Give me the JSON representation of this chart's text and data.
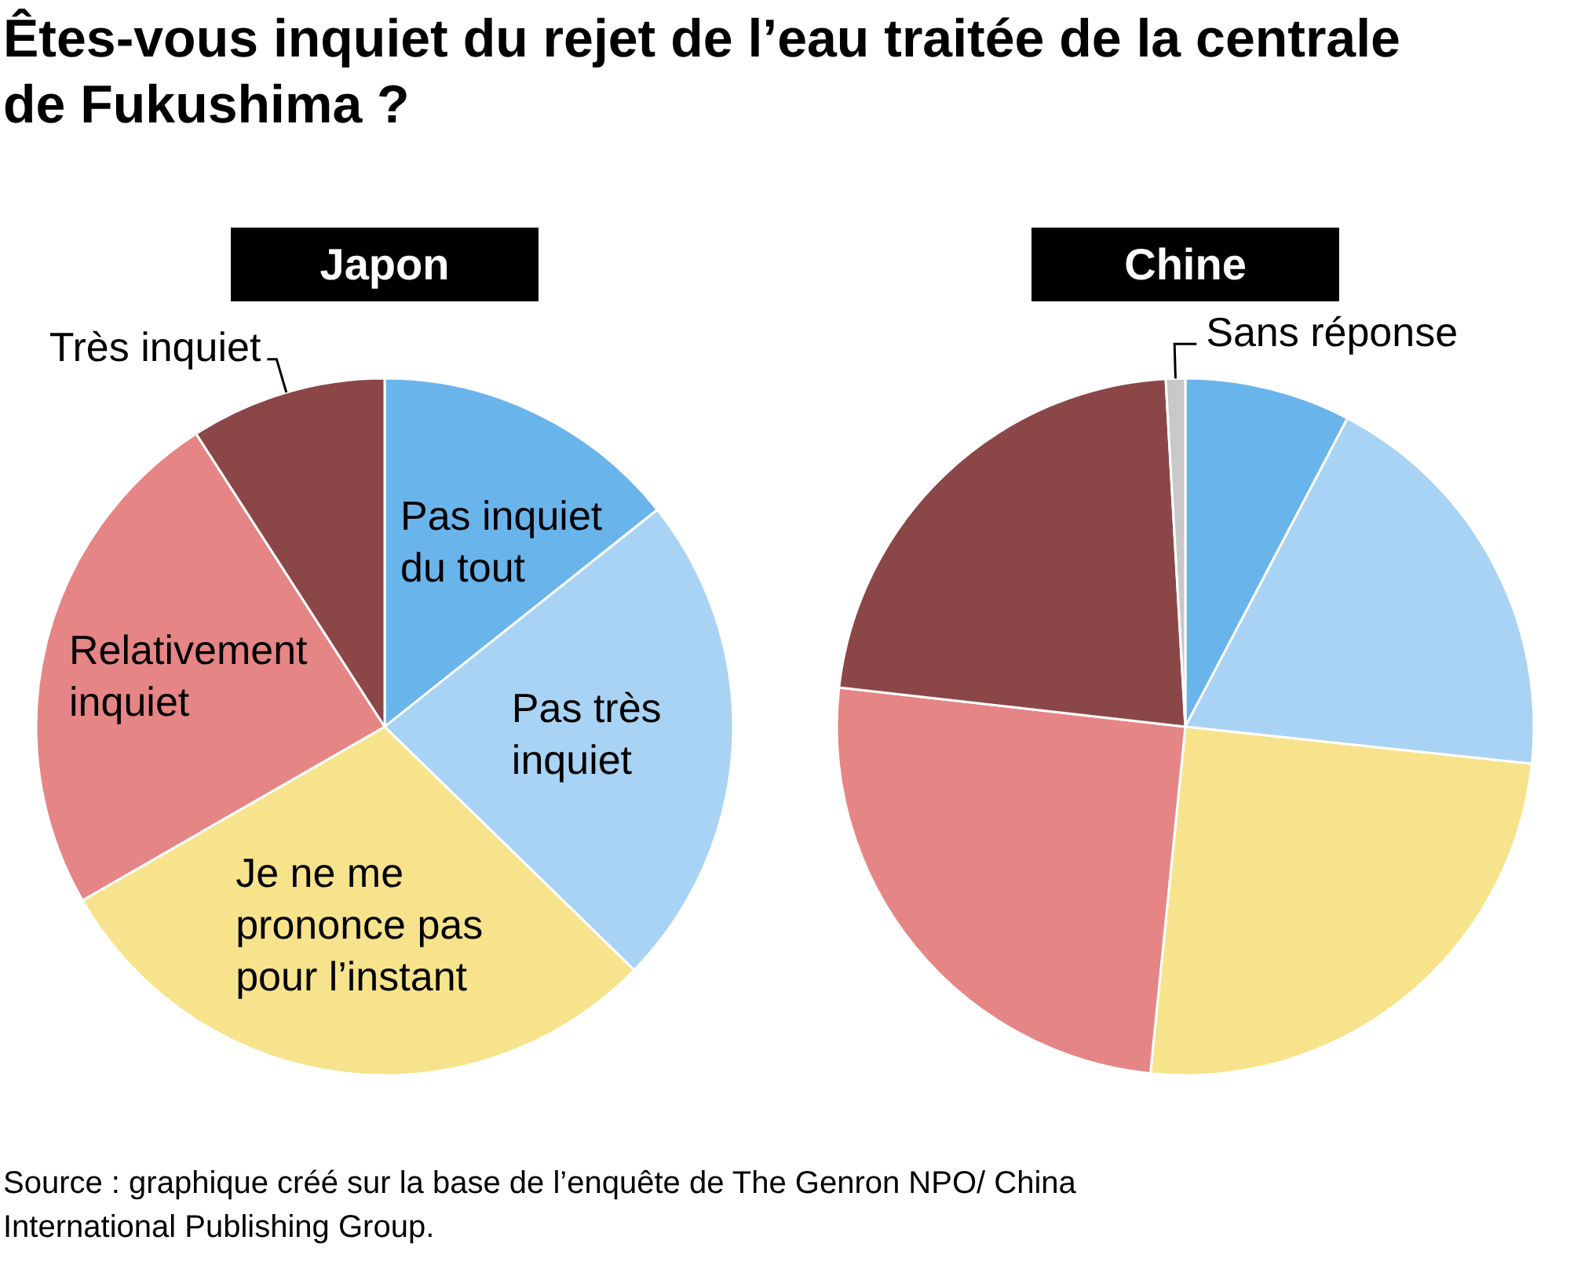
{
  "chart_data": [
    {
      "type": "pie",
      "title": "Êtes-vous inquiet du rejet de l’eau traitée de la centrale de Fukushima ?",
      "subtitle": "Japon",
      "categories": [
        "Pas inquiet du tout",
        "Pas très inquiet",
        "Je ne me prononce pas pour l’instant",
        "Relativement inquiet",
        "Très inquiet"
      ],
      "values": [
        14.3,
        23.0,
        29.4,
        24.2,
        9.1
      ],
      "colors": [
        "#6ab4ec",
        "#a8d3f4",
        "#f7e38c",
        "#e68585",
        "#8b4748"
      ],
      "annotations": [
        "Source : graphique créé sur la base de l’enquête de The Genron NPO/ China International Publishing Group."
      ]
    },
    {
      "type": "pie",
      "subtitle": "Chine",
      "categories": [
        null,
        null,
        null,
        null,
        null,
        "Sans réponse"
      ],
      "values": [
        7.7,
        19.0,
        24.9,
        25.2,
        22.3,
        0.9
      ],
      "colors": [
        "#6ab4ec",
        "#a8d3f4",
        "#f7e38c",
        "#e68585",
        "#8b4748",
        "#c8c8c8"
      ]
    }
  ]
}
